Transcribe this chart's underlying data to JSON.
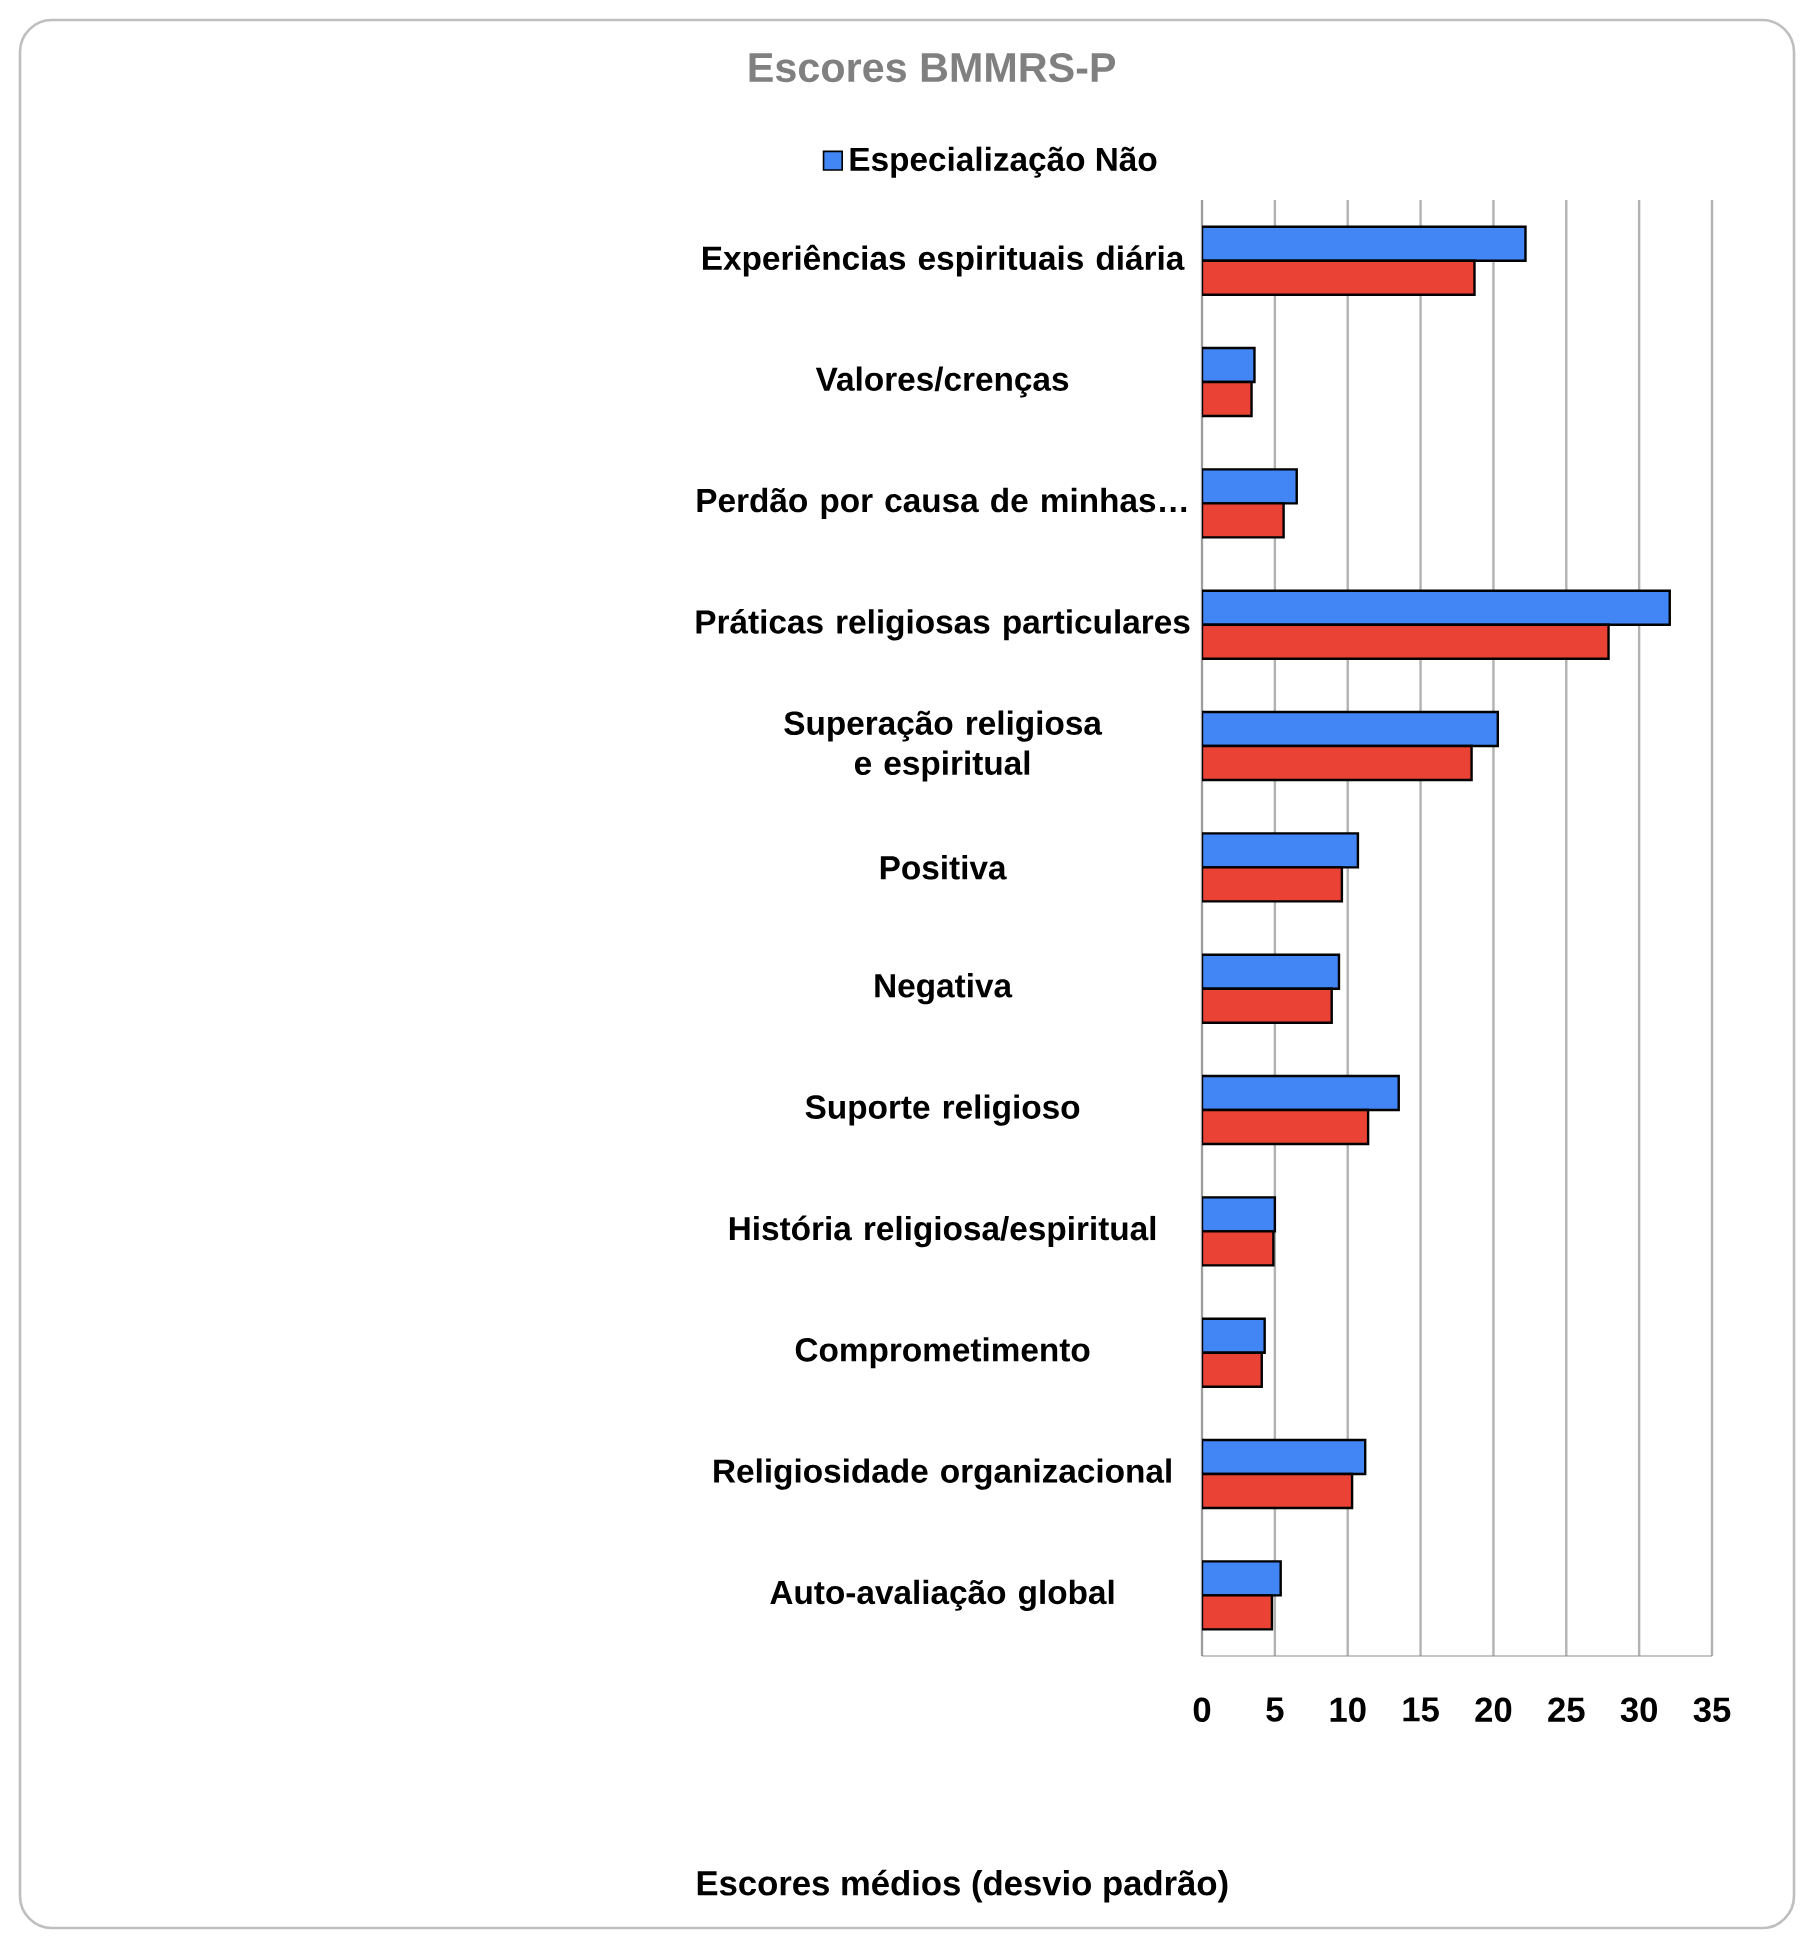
{
  "chart_data": {
    "type": "bar",
    "orientation": "horizontal",
    "title": "Escores BMMRS-P",
    "xlabel": "Escores médios (desvio padrão)",
    "categories": [
      "Experiências espirituais diária",
      "Valores/crenças",
      "Perdão por causa de minhas…",
      "Práticas religiosas particulares",
      "Superação religiosa e espiritual",
      "Positiva",
      "Negativa",
      "Suporte religioso",
      "História religiosa/espiritual",
      "Comprometimento",
      "Religiosidade organizacional",
      "Auto-avaliação global"
    ],
    "series": [
      {
        "name": "Especialização Não",
        "color": "#4285f4",
        "values": [
          22.2,
          3.6,
          6.5,
          32.1,
          20.3,
          10.7,
          9.4,
          13.5,
          5.0,
          4.3,
          11.2,
          5.4
        ]
      },
      {
        "color": "#ea4335",
        "values": [
          18.7,
          3.4,
          5.6,
          27.9,
          18.5,
          9.6,
          8.9,
          11.4,
          4.9,
          4.1,
          10.3,
          4.8
        ]
      }
    ],
    "xlim": [
      0,
      35
    ],
    "xticks": [
      0,
      5,
      10,
      15,
      20,
      25,
      30,
      35
    ],
    "grid": "x",
    "legend": "top"
  }
}
